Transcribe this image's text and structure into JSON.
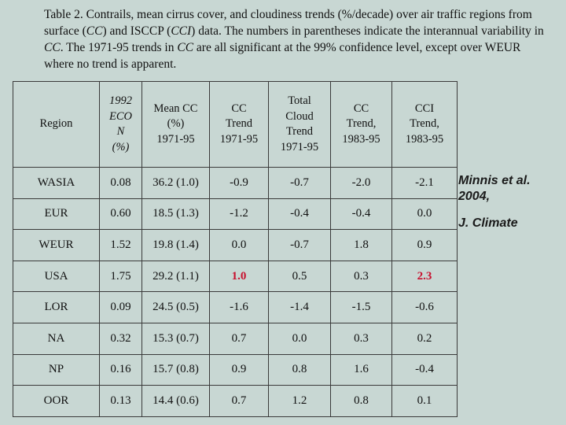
{
  "caption": {
    "p1": "Table 2. Contrails, mean cirrus cover, and cloudiness trends (%/decade) over air traffic regions from surface (",
    "c1": "CC",
    "p2": ") and ISCCP (",
    "c2": "CCI",
    "p3": ") data. The numbers in parentheses indicate the interannual variability in ",
    "c3": "CC",
    "p4": ". The 1971-95 trends in ",
    "c4": "CC",
    "p5": " are all significant at the 99% confidence level, except over WEUR where no trend is apparent."
  },
  "headers": [
    "Region",
    "1992\nECO\nN\n(%)",
    "Mean CC\n(%)\n1971-95",
    "CC\nTrend\n1971-95",
    "Total\nCloud\nTrend\n1971-95",
    "CC\nTrend,\n1983-95",
    "CCI\nTrend,\n1983-95"
  ],
  "rows": [
    [
      "WASIA",
      "0.08",
      "36.2 (1.0)",
      "-0.9",
      "-0.7",
      "-2.0",
      "-2.1"
    ],
    [
      "EUR",
      "0.60",
      "18.5 (1.3)",
      "-1.2",
      "-0.4",
      "-0.4",
      "0.0"
    ],
    [
      "WEUR",
      "1.52",
      "19.8 (1.4)",
      "0.0",
      "-0.7",
      "1.8",
      "0.9"
    ],
    [
      "USA",
      "1.75",
      "29.2 (1.1)",
      "1.0",
      "0.5",
      "0.3",
      "2.3"
    ],
    [
      "LOR",
      "0.09",
      "24.5 (0.5)",
      "-1.6",
      "-1.4",
      "-1.5",
      "-0.6"
    ],
    [
      "NA",
      "0.32",
      "15.3 (0.7)",
      "0.7",
      "0.0",
      "0.3",
      "0.2"
    ],
    [
      "NP",
      "0.16",
      "15.7 (0.8)",
      "0.9",
      "0.8",
      "1.6",
      "-0.4"
    ],
    [
      "OOR",
      "0.13",
      "14.4 (0.6)",
      "0.7",
      "1.2",
      "0.8",
      "0.1"
    ]
  ],
  "highlight_color": "#c8102e",
  "citation": {
    "line1": "Minnis et al.",
    "line2": "2004,",
    "journal": "J. Climate"
  }
}
